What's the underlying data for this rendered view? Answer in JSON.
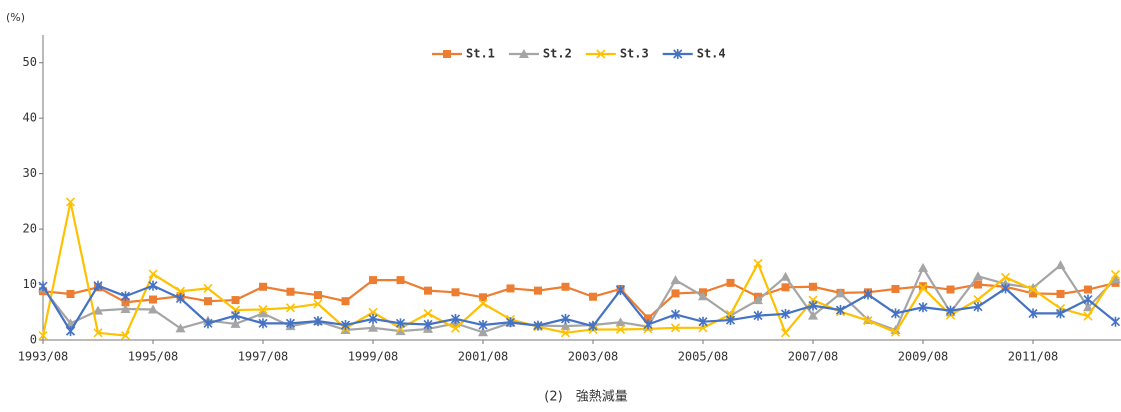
{
  "chart_data": {
    "type": "line",
    "title": "(2)　強熱減量",
    "y_label": "(%)",
    "categories": [
      "1993/08",
      null,
      null,
      null,
      "1995/08",
      null,
      null,
      null,
      "1997/08",
      null,
      null,
      null,
      "1999/08",
      null,
      null,
      null,
      "2001/08",
      null,
      null,
      null,
      "2003/08",
      null,
      null,
      null,
      "2005/08",
      null,
      null,
      null,
      "2007/08",
      null,
      null,
      null,
      "2009/08",
      null,
      null,
      null,
      "2011/08",
      null,
      null,
      null
    ],
    "series": [
      {
        "name": "St.1",
        "color": "#ED7D31",
        "marker": "square",
        "values": [
          8.8,
          8.3,
          9.5,
          6.8,
          7.3,
          7.9,
          7.0,
          7.2,
          9.6,
          8.7,
          8.1,
          7.0,
          10.8,
          10.8,
          8.9,
          8.6,
          7.7,
          9.3,
          8.9,
          9.6,
          7.8,
          9.2,
          3.9,
          8.4,
          8.6,
          10.3,
          7.8,
          9.5,
          9.6,
          8.5,
          8.6,
          9.2,
          9.7,
          9.1,
          10.0,
          9.6,
          8.4,
          8.3,
          9.1,
          10.3
        ]
      },
      {
        "name": "St.2",
        "color": "#A5A5A5",
        "marker": "triangle",
        "values": [
          9.3,
          3.0,
          5.3,
          5.6,
          5.5,
          2.1,
          3.5,
          2.9,
          4.8,
          2.5,
          3.4,
          1.8,
          2.2,
          1.6,
          2.0,
          3.0,
          1.4,
          3.1,
          2.6,
          2.5,
          2.7,
          3.2,
          2.4,
          10.8,
          7.9,
          4.4,
          7.2,
          11.4,
          4.4,
          8.4,
          3.6,
          1.8,
          13.0,
          5.0,
          11.5,
          10.1,
          9.4,
          13.5,
          5.9,
          11.0
        ]
      },
      {
        "name": "St.3",
        "color": "#FFC000",
        "marker": "x",
        "values": [
          0.8,
          24.9,
          1.3,
          0.8,
          11.9,
          8.8,
          9.3,
          5.4,
          5.5,
          5.8,
          6.5,
          2.1,
          5.0,
          2.1,
          4.8,
          2.1,
          6.6,
          3.7,
          2.4,
          1.3,
          1.9,
          1.9,
          2.0,
          2.2,
          2.2,
          4.6,
          13.8,
          1.3,
          7.2,
          5.1,
          3.5,
          1.4,
          9.4,
          4.5,
          7.3,
          11.3,
          9.1,
          5.7,
          4.3,
          11.8
        ]
      },
      {
        "name": "St.4",
        "color": "#4472C4",
        "marker": "star",
        "values": [
          9.7,
          1.6,
          9.8,
          7.9,
          9.8,
          7.5,
          3.0,
          4.4,
          3.0,
          3.0,
          3.4,
          2.7,
          3.8,
          3.0,
          2.8,
          3.8,
          2.7,
          3.2,
          2.6,
          3.8,
          2.5,
          9.0,
          2.8,
          4.6,
          3.3,
          3.6,
          4.4,
          4.7,
          6.2,
          5.4,
          8.2,
          4.8,
          5.9,
          5.3,
          6.0,
          9.3,
          4.8,
          4.8,
          7.3,
          3.3
        ]
      }
    ],
    "ylim": [
      0,
      55
    ],
    "yticks": [
      0,
      10,
      20,
      30,
      40,
      50
    ],
    "grid": false,
    "legend": "top"
  }
}
